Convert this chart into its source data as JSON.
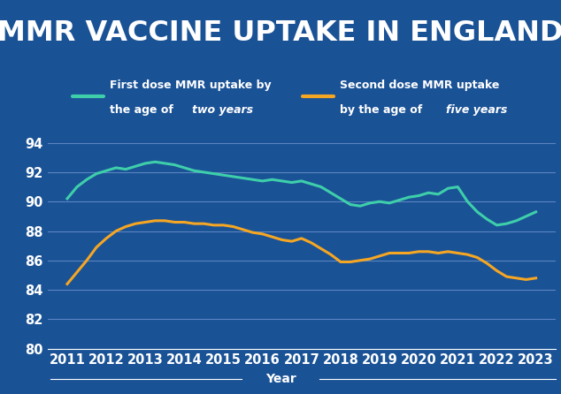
{
  "title": "MMR VACCINE UPTAKE IN ENGLAND",
  "title_fontsize": 23,
  "title_color": "white",
  "title_bg_color": "#0d0d0d",
  "background_color": "#1a5296",
  "plot_bg_color": "#1a5296",
  "xlabel": "Year",
  "ylim": [
    80,
    95
  ],
  "yticks": [
    80,
    82,
    84,
    86,
    88,
    90,
    92,
    94
  ],
  "xlim": [
    2010.5,
    2023.5
  ],
  "xticks": [
    2011,
    2012,
    2013,
    2014,
    2015,
    2016,
    2017,
    2018,
    2019,
    2020,
    2021,
    2022,
    2023
  ],
  "line1_color": "#3ecfaa",
  "line2_color": "#f5a623",
  "line1_x": [
    2011,
    2011.25,
    2011.5,
    2011.75,
    2012,
    2012.25,
    2012.5,
    2012.75,
    2013,
    2013.25,
    2013.5,
    2013.75,
    2014,
    2014.25,
    2014.5,
    2014.75,
    2015,
    2015.25,
    2015.5,
    2015.75,
    2016,
    2016.25,
    2016.5,
    2016.75,
    2017,
    2017.25,
    2017.5,
    2017.75,
    2018,
    2018.25,
    2018.5,
    2018.75,
    2019,
    2019.25,
    2019.5,
    2019.75,
    2020,
    2020.25,
    2020.5,
    2020.75,
    2021,
    2021.25,
    2021.5,
    2021.75,
    2022,
    2022.25,
    2022.5,
    2022.75,
    2023
  ],
  "line1_y": [
    90.2,
    91.0,
    91.5,
    91.9,
    92.1,
    92.3,
    92.2,
    92.4,
    92.6,
    92.7,
    92.6,
    92.5,
    92.3,
    92.1,
    92.0,
    91.9,
    91.8,
    91.7,
    91.6,
    91.5,
    91.4,
    91.5,
    91.4,
    91.3,
    91.4,
    91.2,
    91.0,
    90.6,
    90.2,
    89.8,
    89.7,
    89.9,
    90.0,
    89.9,
    90.1,
    90.3,
    90.4,
    90.6,
    90.5,
    90.9,
    91.0,
    90.0,
    89.3,
    88.8,
    88.4,
    88.5,
    88.7,
    89.0,
    89.3
  ],
  "line2_x": [
    2011,
    2011.25,
    2011.5,
    2011.75,
    2012,
    2012.25,
    2012.5,
    2012.75,
    2013,
    2013.25,
    2013.5,
    2013.75,
    2014,
    2014.25,
    2014.5,
    2014.75,
    2015,
    2015.25,
    2015.5,
    2015.75,
    2016,
    2016.25,
    2016.5,
    2016.75,
    2017,
    2017.25,
    2017.5,
    2017.75,
    2018,
    2018.25,
    2018.5,
    2018.75,
    2019,
    2019.25,
    2019.5,
    2019.75,
    2020,
    2020.25,
    2020.5,
    2020.75,
    2021,
    2021.25,
    2021.5,
    2021.75,
    2022,
    2022.25,
    2022.5,
    2022.75,
    2023
  ],
  "line2_y": [
    84.4,
    85.2,
    86.0,
    86.9,
    87.5,
    88.0,
    88.3,
    88.5,
    88.6,
    88.7,
    88.7,
    88.6,
    88.6,
    88.5,
    88.5,
    88.4,
    88.4,
    88.3,
    88.1,
    87.9,
    87.8,
    87.6,
    87.4,
    87.3,
    87.5,
    87.2,
    86.8,
    86.4,
    85.9,
    85.9,
    86.0,
    86.1,
    86.3,
    86.5,
    86.5,
    86.5,
    86.6,
    86.6,
    86.5,
    86.6,
    86.5,
    86.4,
    86.2,
    85.8,
    85.3,
    84.9,
    84.8,
    84.7,
    84.8
  ],
  "grid_color": "#5a85c0",
  "tick_color": "white",
  "tick_fontsize": 10.5,
  "line_width": 2.2,
  "legend_fontsize": 9
}
